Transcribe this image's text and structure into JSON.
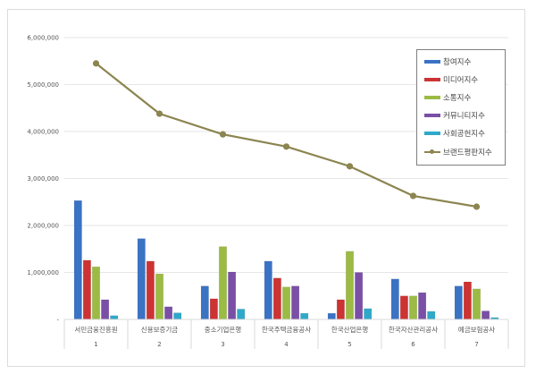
{
  "chart_data": {
    "type": "bar+line",
    "title": "",
    "xlabel": "",
    "ylabel": "",
    "ylim": [
      0,
      6000000
    ],
    "y_ticks": [
      "-",
      "1,000,000",
      "2,000,000",
      "3,000,000",
      "4,000,000",
      "5,000,000",
      "6,000,000"
    ],
    "grid": true,
    "legend_position": "right-top",
    "categories": [
      "서민금융진흥원",
      "신용보증기금",
      "중소기업은행",
      "한국주택금융공사",
      "한국산업은행",
      "한국자산관리공사",
      "예금보험공사"
    ],
    "category_numbers": [
      "1",
      "2",
      "3",
      "4",
      "5",
      "6",
      "7"
    ],
    "series": [
      {
        "name": "참여지수",
        "type": "bar",
        "color": "#3a72c4",
        "values": [
          2530000,
          1720000,
          710000,
          1240000,
          130000,
          860000,
          710000
        ]
      },
      {
        "name": "미디어지수",
        "type": "bar",
        "color": "#cc3333",
        "values": [
          1260000,
          1240000,
          440000,
          880000,
          420000,
          500000,
          800000
        ]
      },
      {
        "name": "소통지수",
        "type": "bar",
        "color": "#9bbb45",
        "values": [
          1120000,
          970000,
          1550000,
          690000,
          1450000,
          500000,
          650000
        ]
      },
      {
        "name": "커뮤니티지수",
        "type": "bar",
        "color": "#7a4fa6",
        "values": [
          420000,
          270000,
          1010000,
          710000,
          1000000,
          570000,
          180000
        ]
      },
      {
        "name": "사회공헌지수",
        "type": "bar",
        "color": "#2fa9c9",
        "values": [
          80000,
          140000,
          220000,
          130000,
          230000,
          170000,
          40000
        ]
      },
      {
        "name": "브랜드평판지수",
        "type": "line",
        "color": "#8c8550",
        "values": [
          5450000,
          4380000,
          3940000,
          3680000,
          3260000,
          2630000,
          2400000
        ]
      }
    ]
  }
}
